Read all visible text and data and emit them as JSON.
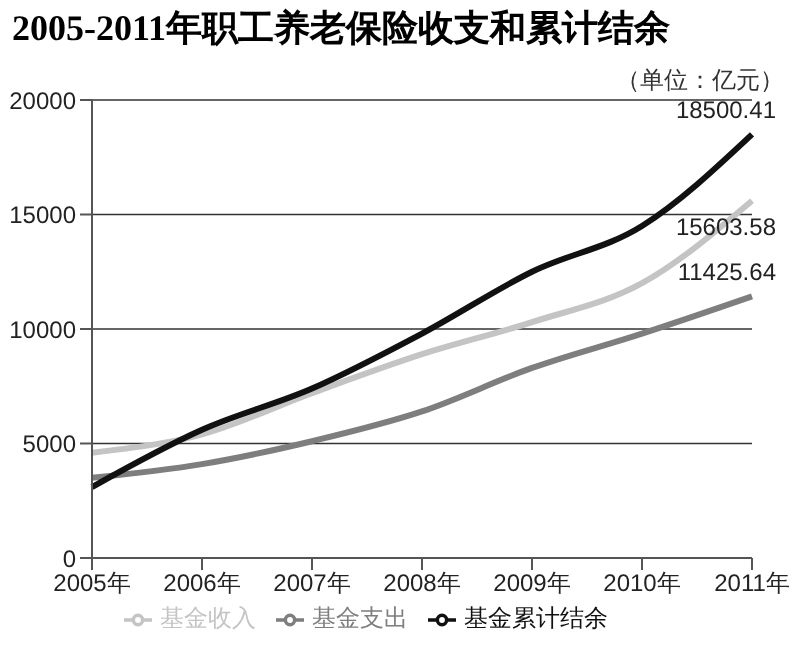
{
  "chart_data": {
    "type": "line",
    "title": "2005-2011年职工养老保险收支和累计结余",
    "annotations": [
      "（单位：亿元）"
    ],
    "categories": [
      "2005年",
      "2006年",
      "2007年",
      "2008年",
      "2009年",
      "2010年",
      "2011年"
    ],
    "series": [
      {
        "name": "基金收入",
        "color": "#c4c4c4",
        "values": [
          4600,
          5400,
          7200,
          8900,
          10300,
          12000,
          15603.58
        ],
        "value_labels": [
          null,
          null,
          null,
          null,
          null,
          null,
          "15603.58"
        ]
      },
      {
        "name": "基金支出",
        "color": "#7e7e7e",
        "values": [
          3500,
          4100,
          5100,
          6400,
          8300,
          9800,
          11425.64
        ],
        "value_labels": [
          null,
          null,
          null,
          null,
          null,
          null,
          "11425.64"
        ]
      },
      {
        "name": "基金累计结余",
        "color": "#111111",
        "values": [
          3100,
          5600,
          7400,
          9800,
          12500,
          14500,
          18500.41
        ],
        "value_labels": [
          null,
          null,
          null,
          null,
          null,
          null,
          "18500.41"
        ]
      }
    ],
    "ylim": [
      0,
      20000
    ],
    "yticks": [
      0,
      5000,
      10000,
      15000,
      20000
    ],
    "grid": "y",
    "legend": "bottom",
    "line_style": "solid"
  }
}
